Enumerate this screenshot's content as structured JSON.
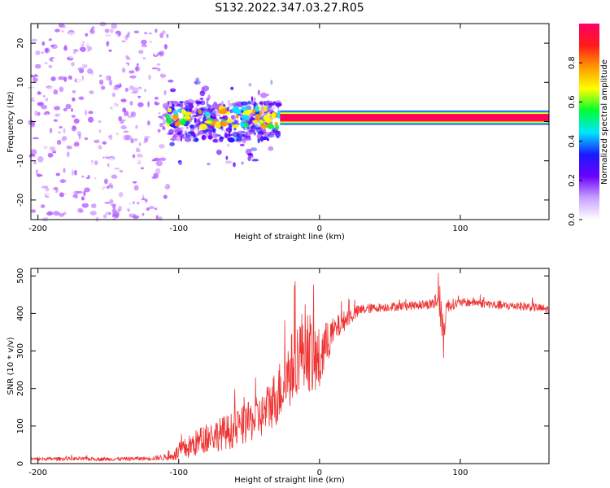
{
  "title": "S132.2022.347.03.27.R05",
  "colors": {
    "snr_line": "#ee3333",
    "axis": "#000000"
  },
  "chart_data": [
    {
      "type": "heatmap",
      "name": "spectrogram",
      "xlabel": "Height of straight line (km)",
      "ylabel": "Frequency (Hz)",
      "xlim": [
        -205,
        163
      ],
      "ylim": [
        -25,
        25
      ],
      "x_ticks": [
        "-200",
        "-100",
        "0",
        "100"
      ],
      "y_ticks": [
        "20",
        "10",
        "0",
        "-10",
        "-20"
      ],
      "colorbar": {
        "label": "Normalized spectral amplitude",
        "range": [
          0,
          1
        ],
        "ticks": [
          "0.0",
          "0.2",
          "0.4",
          "0.6",
          "0.8"
        ],
        "colormap": [
          "#ffffff",
          "#b35cff",
          "#6a00ff",
          "#1a1aff",
          "#00e5ff",
          "#00ff33",
          "#ffff00",
          "#ff9900",
          "#ff1a1a",
          "#ff0066"
        ]
      },
      "regions": [
        {
          "kind": "noise",
          "x_range": [
            -205,
            -108
          ],
          "f_range": [
            -25,
            25
          ],
          "amplitude": 0.12
        },
        {
          "kind": "transition",
          "x_range": [
            -108,
            -28
          ],
          "f_range": [
            -12,
            10
          ],
          "amplitude": 0.35
        },
        {
          "kind": "tone",
          "x_range": [
            -28,
            163
          ],
          "f_center": 1,
          "f_halfwidth": 1.5,
          "amplitude": 0.9
        }
      ]
    },
    {
      "type": "line",
      "name": "snr",
      "xlabel": "Height of straight line (km)",
      "ylabel": "SNR (10 * v/v)",
      "xlim": [
        -205,
        163
      ],
      "ylim": [
        0,
        520
      ],
      "x_ticks": [
        "-200",
        "-100",
        "0",
        "100"
      ],
      "y_ticks": [
        "0",
        "100",
        "200",
        "300",
        "400",
        "500"
      ],
      "series": [
        {
          "x": [
            -205,
            -180,
            -150,
            -120,
            -105,
            -100,
            -90,
            -80,
            -70,
            -60,
            -50,
            -40,
            -35,
            -30,
            -25,
            -20,
            -15,
            -10,
            -5,
            0,
            5,
            10,
            15,
            20,
            25,
            30,
            40,
            50,
            60,
            70,
            80,
            85,
            88,
            90,
            95,
            100,
            110,
            120,
            130,
            140,
            150,
            163
          ],
          "y": [
            12,
            13,
            12,
            14,
            18,
            30,
            50,
            70,
            80,
            90,
            110,
            130,
            160,
            180,
            220,
            250,
            290,
            320,
            280,
            270,
            320,
            350,
            370,
            390,
            400,
            410,
            415,
            418,
            420,
            422,
            425,
            440,
            330,
            420,
            425,
            428,
            430,
            425,
            420,
            420,
            418,
            410
          ],
          "noise": [
            5,
            5,
            5,
            5,
            10,
            25,
            35,
            40,
            45,
            50,
            55,
            60,
            70,
            80,
            90,
            100,
            100,
            110,
            110,
            90,
            60,
            40,
            30,
            25,
            20,
            15,
            12,
            12,
            12,
            12,
            15,
            40,
            60,
            20,
            15,
            12,
            12,
            12,
            12,
            12,
            12,
            12
          ]
        }
      ]
    }
  ]
}
